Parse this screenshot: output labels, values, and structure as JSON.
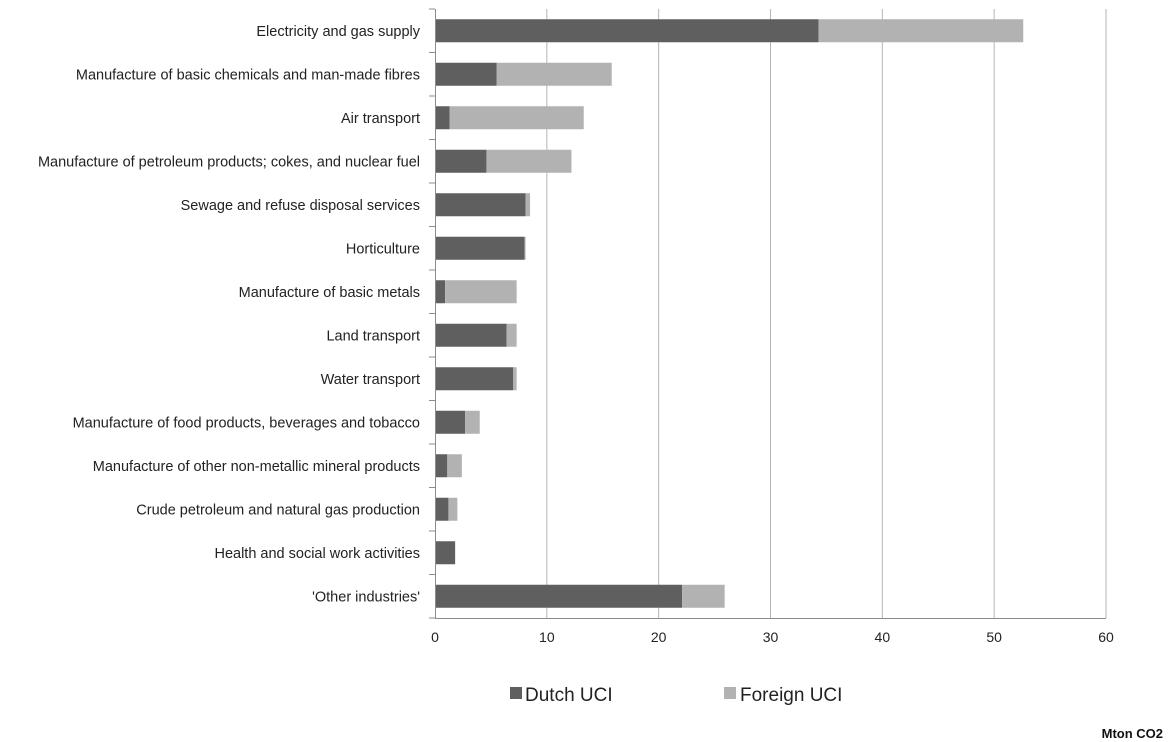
{
  "chart_data": {
    "type": "bar",
    "orientation": "horizontal",
    "stacked": true,
    "categories": [
      "Electricity and gas supply",
      "Manufacture of basic chemicals and man-made fibres",
      "Air transport",
      "Manufacture of petroleum products; cokes, and nuclear fuel",
      "Sewage and refuse disposal services",
      "Horticulture",
      "Manufacture of basic metals",
      "Land transport",
      "Water transport",
      "Manufacture of food products, beverages and tobacco",
      "Manufacture of other non-metallic mineral products",
      "Crude petroleum and natural gas production",
      "Health and social work activities",
      "'Other industries'"
    ],
    "series": [
      {
        "name": "Dutch UCI",
        "color": "#5f5f5f",
        "values": [
          34.3,
          5.5,
          1.3,
          4.6,
          8.1,
          8.0,
          0.9,
          6.4,
          7.0,
          2.7,
          1.1,
          1.2,
          1.8,
          22.1
        ]
      },
      {
        "name": "Foreign UCI",
        "color": "#b2b2b2",
        "values": [
          18.3,
          10.3,
          12.0,
          7.6,
          0.4,
          0.1,
          6.4,
          0.9,
          0.3,
          1.3,
          1.3,
          0.8,
          0.0,
          3.8
        ]
      }
    ],
    "xlim": [
      0,
      60
    ],
    "xticks": [
      0,
      10,
      20,
      30,
      40,
      50,
      60
    ],
    "xlabel": "Mton CO2",
    "ylabel": "",
    "grid": "vertical",
    "legend_position": "bottom"
  }
}
